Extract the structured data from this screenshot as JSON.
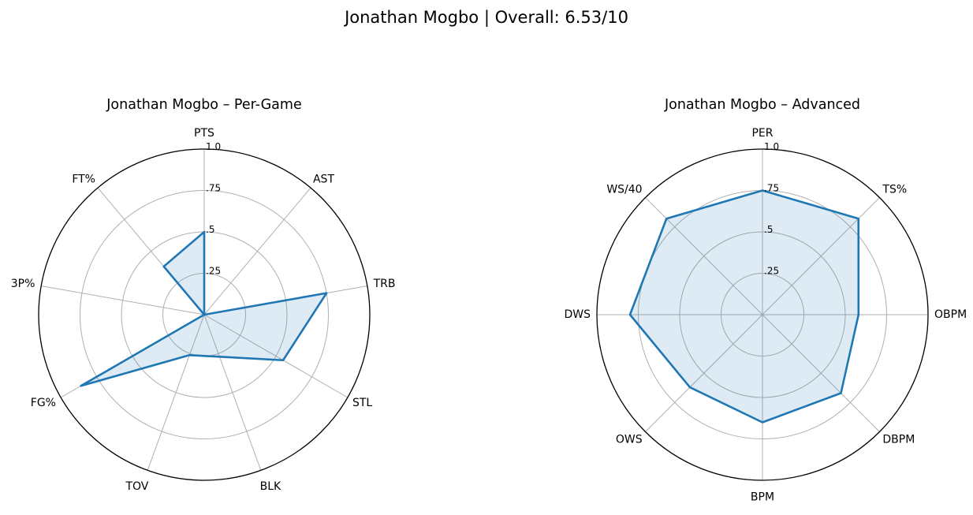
{
  "title": "Jonathan Mogbo | Overall: 6.53/10",
  "colors": {
    "series_line": "#1f77b4",
    "series_fill": "#1f77b4",
    "grid": "#b0b0b0",
    "frame": "#000000"
  },
  "chart_data": [
    {
      "type": "radar",
      "title": "Jonathan Mogbo – Per-Game",
      "categories": [
        "PTS",
        "AST",
        "TRB",
        "STL",
        "BLK",
        "TOV",
        "FG%",
        "3P%",
        "FT%"
      ],
      "values": [
        0.5,
        0.0,
        0.75,
        0.55,
        0.27,
        0.26,
        0.86,
        0.0,
        0.38
      ],
      "rlim": [
        0,
        1.0
      ],
      "radial_ticks": [
        0.25,
        0.5,
        0.75,
        1.0
      ],
      "radial_tick_labels": [
        ".25",
        ".5",
        ".75",
        "1.0"
      ],
      "grid": true
    },
    {
      "type": "radar",
      "title": "Jonathan Mogbo – Advanced",
      "categories": [
        "PER",
        "TS%",
        "OBPM",
        "DBPM",
        "BPM",
        "OWS",
        "DWS",
        "WS/40"
      ],
      "values": [
        0.75,
        0.82,
        0.58,
        0.67,
        0.65,
        0.62,
        0.8,
        0.82
      ],
      "rlim": [
        0,
        1.0
      ],
      "radial_ticks": [
        0.25,
        0.5,
        0.75,
        1.0
      ],
      "radial_tick_labels": [
        ".25",
        ".5",
        ".75",
        "1.0"
      ],
      "grid": true
    }
  ]
}
